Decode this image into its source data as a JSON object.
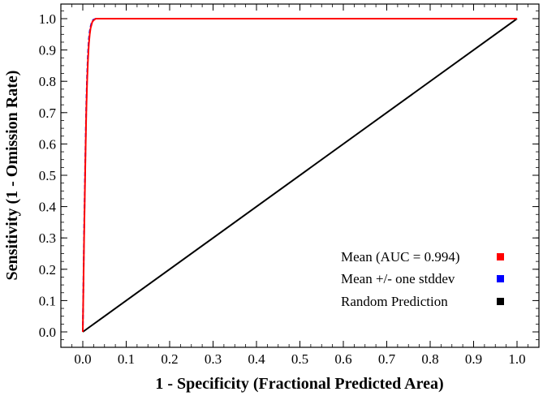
{
  "chart_data": {
    "type": "line",
    "title": "",
    "xlabel": "1 - Specificity (Fractional Predicted Area)",
    "ylabel": "Sensitivity (1 - Omission Rate)",
    "xlim": [
      0,
      1
    ],
    "ylim": [
      0,
      1
    ],
    "xticks": [
      "0.0",
      "0.1",
      "0.2",
      "0.3",
      "0.4",
      "0.5",
      "0.6",
      "0.7",
      "0.8",
      "0.9",
      "1.0"
    ],
    "yticks": [
      "0.0",
      "0.1",
      "0.2",
      "0.3",
      "0.4",
      "0.5",
      "0.6",
      "0.7",
      "0.8",
      "0.9",
      "1.0"
    ],
    "grid": false,
    "legend_position": "bottom-right",
    "series": [
      {
        "name": "Mean (AUC = 0.994)",
        "color": "#ff0000",
        "x": [
          0.0,
          0.003,
          0.006,
          0.008,
          0.01,
          0.012,
          0.014,
          0.016,
          0.018,
          0.02,
          0.022,
          0.025,
          0.03,
          0.04,
          1.0
        ],
        "y": [
          0.0,
          0.3,
          0.55,
          0.7,
          0.8,
          0.87,
          0.92,
          0.95,
          0.97,
          0.98,
          0.99,
          0.995,
          1.0,
          1.0,
          1.0
        ]
      },
      {
        "name": "Mean +/- one stddev",
        "color": "#0000ff",
        "x": [
          0.0,
          0.003,
          0.006,
          0.008,
          0.01,
          0.012,
          0.014,
          0.016,
          0.018,
          0.02,
          0.022,
          0.025,
          0.03,
          0.04,
          1.0
        ],
        "y": [
          0.0,
          0.32,
          0.57,
          0.72,
          0.82,
          0.89,
          0.935,
          0.96,
          0.975,
          0.985,
          0.993,
          0.997,
          1.0,
          1.0,
          1.0
        ]
      },
      {
        "name": "Random Prediction",
        "color": "#000000",
        "x": [
          0.0,
          1.0
        ],
        "y": [
          0.0,
          1.0
        ]
      }
    ]
  }
}
